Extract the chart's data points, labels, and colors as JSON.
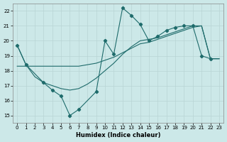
{
  "xlabel": "Humidex (Indice chaleur)",
  "xlim": [
    -0.5,
    23.5
  ],
  "ylim": [
    14.5,
    22.5
  ],
  "xticks": [
    0,
    1,
    2,
    3,
    4,
    5,
    6,
    7,
    8,
    9,
    10,
    11,
    12,
    13,
    14,
    15,
    16,
    17,
    18,
    19,
    20,
    21,
    22,
    23
  ],
  "yticks": [
    15,
    16,
    17,
    18,
    19,
    20,
    21,
    22
  ],
  "background_color": "#cce8e8",
  "grid_color": "#b8d4d4",
  "line_color": "#1e6b6b",
  "zigzag_x": [
    0,
    1,
    3,
    4,
    5,
    6,
    7,
    9,
    10,
    11,
    12,
    13,
    14,
    15,
    16,
    17,
    18,
    19,
    20,
    21,
    22
  ],
  "zigzag_y": [
    19.7,
    18.4,
    17.2,
    16.7,
    16.3,
    15.0,
    15.4,
    16.6,
    20.0,
    19.1,
    22.2,
    21.7,
    21.1,
    20.0,
    20.3,
    20.7,
    20.9,
    21.0,
    21.0,
    19.0,
    18.8
  ],
  "smooth1_x": [
    0,
    1,
    2,
    3,
    4,
    5,
    6,
    7,
    8,
    9,
    10,
    11,
    12,
    13,
    14,
    15,
    16,
    17,
    18,
    19,
    20,
    21,
    22,
    23
  ],
  "smooth1_y": [
    18.3,
    18.3,
    18.3,
    18.3,
    18.3,
    18.3,
    18.3,
    18.3,
    18.4,
    18.5,
    18.7,
    18.9,
    19.2,
    19.5,
    19.8,
    19.9,
    20.1,
    20.3,
    20.5,
    20.7,
    20.9,
    21.0,
    18.8,
    18.8
  ],
  "smooth2_x": [
    0,
    1,
    2,
    3,
    4,
    5,
    6,
    7,
    8,
    9,
    10,
    11,
    12,
    13,
    14,
    15,
    16,
    17,
    18,
    19,
    20,
    21,
    22,
    23
  ],
  "smooth2_y": [
    19.7,
    18.4,
    17.6,
    17.2,
    17.0,
    16.8,
    16.7,
    16.8,
    17.1,
    17.5,
    18.0,
    18.5,
    19.1,
    19.6,
    20.0,
    20.1,
    20.2,
    20.4,
    20.6,
    20.8,
    21.0,
    21.0,
    18.8,
    18.8
  ]
}
